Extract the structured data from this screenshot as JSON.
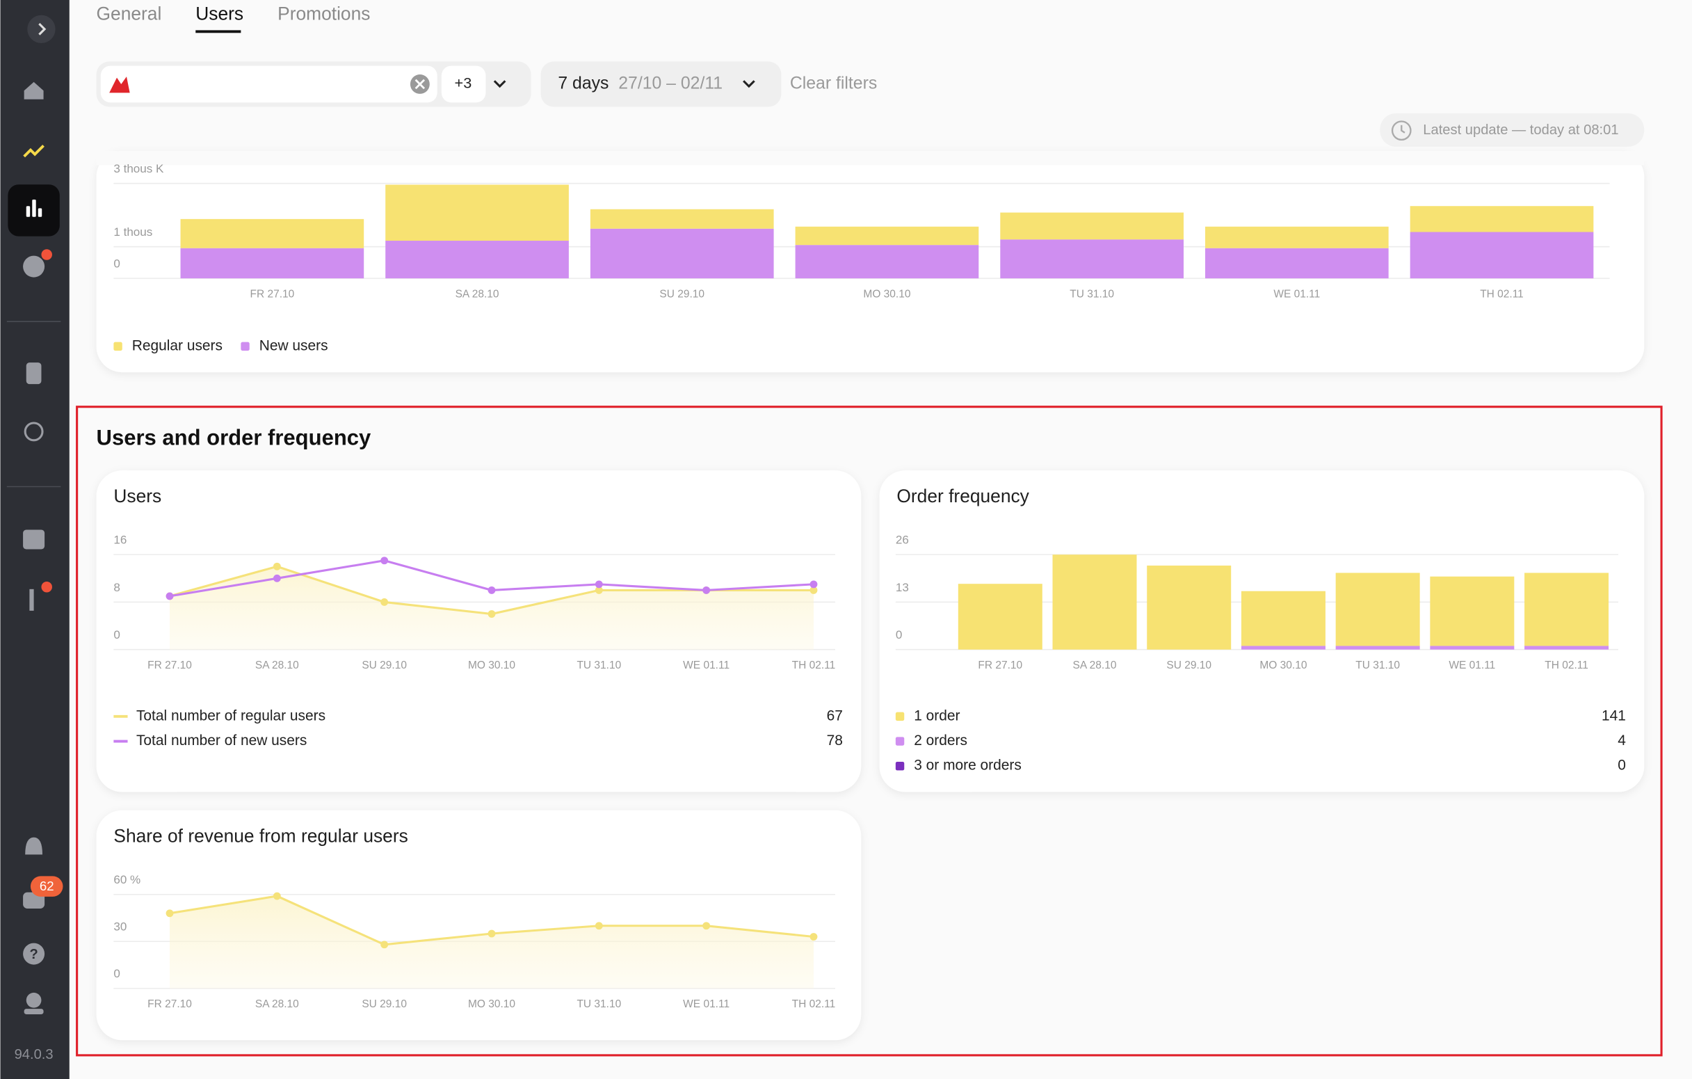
{
  "sidebar": {
    "badge": "62",
    "version": "94.0.3"
  },
  "tabs": [
    "General",
    "Users",
    "Promotions"
  ],
  "filters": {
    "extra": "+3",
    "period": "7 days",
    "dates": "27/10 – 02/11",
    "clear": "Clear filters"
  },
  "latest_update": "Latest update — today at 08:01",
  "section_title": "Users and order frequency",
  "chart_data": [
    {
      "type": "bar",
      "stacked": true,
      "grid": true,
      "categories": [
        "FR 27.10",
        "SA 28.10",
        "SU 29.10",
        "MO 30.10",
        "TU 31.10",
        "WE 01.11",
        "TH 02.11"
      ],
      "series": [
        {
          "name": "Regular users",
          "color": "#f7e272",
          "values": [
            920,
            1770,
            615,
            580,
            850,
            680,
            820
          ]
        },
        {
          "name": "New users",
          "color": "#cf8ef0",
          "values": [
            955,
            1190,
            1570,
            1055,
            1230,
            955,
            1465
          ]
        }
      ],
      "ylim": [
        0,
        3000
      ],
      "yticks": [
        0,
        {
          "value": 1000,
          "label": "1 thous"
        },
        {
          "value": 3000,
          "label": "3 thous K"
        }
      ]
    },
    {
      "type": "line",
      "title": "Users",
      "grid": true,
      "area": true,
      "categories": [
        "FR 27.10",
        "SA 28.10",
        "SU 29.10",
        "MO 30.10",
        "TU 31.10",
        "WE 01.11",
        "TH 02.11"
      ],
      "series": [
        {
          "name": "Total number of regular users",
          "color": "#f5e27a",
          "values": [
            9,
            14,
            8,
            6,
            10,
            10,
            10
          ],
          "total": 67
        },
        {
          "name": "Total number of new users",
          "color": "#c77ef0",
          "values": [
            9,
            12,
            15,
            10,
            11,
            10,
            11
          ],
          "total": 78
        }
      ],
      "ylim": [
        0,
        16
      ],
      "yticks": [
        0,
        8,
        16
      ]
    },
    {
      "type": "bar",
      "title": "Order frequency",
      "stacked": true,
      "grid": true,
      "categories": [
        "FR 27.10",
        "SA 28.10",
        "SU 29.10",
        "MO 30.10",
        "TU 31.10",
        "WE 01.11",
        "TH 02.11"
      ],
      "series": [
        {
          "name": "1 order",
          "color": "#f7e272",
          "values": [
            18,
            26,
            23,
            15,
            20,
            19,
            20
          ],
          "total": 141
        },
        {
          "name": "2 orders",
          "color": "#cf8ef0",
          "values": [
            0,
            0,
            0,
            1,
            1,
            1,
            1
          ],
          "total": 4
        },
        {
          "name": "3 or more orders",
          "color": "#7b2fbe",
          "values": [
            0,
            0,
            0,
            0,
            0,
            0,
            0
          ],
          "total": 0
        }
      ],
      "ylim": [
        0,
        26
      ],
      "yticks": [
        0,
        13,
        26
      ]
    },
    {
      "type": "line",
      "title": "Share of revenue from regular users",
      "grid": true,
      "area": true,
      "categories": [
        "FR 27.10",
        "SA 28.10",
        "SU 29.10",
        "MO 30.10",
        "TU 31.10",
        "WE 01.11",
        "TH 02.11"
      ],
      "series": [
        {
          "color": "#f5e27a",
          "values": [
            48,
            59,
            28,
            35,
            40,
            40,
            33
          ]
        }
      ],
      "ylim": [
        0,
        60
      ],
      "yticks": [
        0,
        30,
        {
          "value": 60,
          "label": "60 %"
        }
      ]
    }
  ]
}
